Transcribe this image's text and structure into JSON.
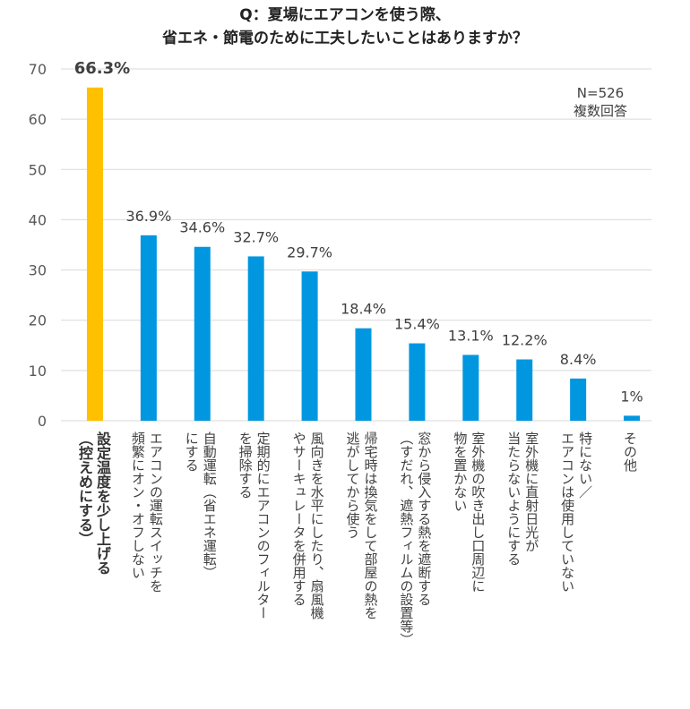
{
  "title": {
    "line1": "Q：夏場にエアコンを使う際、",
    "line2": "省エネ・節電のために工夫したいことはありますか？"
  },
  "note": {
    "n": "N=526",
    "type": "複数回答"
  },
  "colors": {
    "highlight": "#FFC000",
    "bar": "#0097E0",
    "grid": "#D9D9D9",
    "axis_text": "#595959"
  },
  "chart_data": {
    "type": "bar",
    "ylim": [
      0,
      70
    ],
    "yticks": [
      "0",
      "10",
      "20",
      "30",
      "40",
      "50",
      "60",
      "70"
    ],
    "grid": true,
    "categories": [
      [
        "設定温度を少し上げる",
        "（控えめにする）"
      ],
      [
        "エアコンの運転スイッチを",
        "頻繁にオン・オフしない"
      ],
      [
        "自動運転（省エネ運転）",
        "にする"
      ],
      [
        "定期的にエアコンのフィルター",
        "を掃除する"
      ],
      [
        "風向きを水平にしたり、扇風機",
        "やサーキュレータを併用する"
      ],
      [
        "帰宅時は換気をして部屋の熱を",
        "逃がしてから使う"
      ],
      [
        "窓から侵入する熱を遮断する",
        "（すだれ、遮熱フィルムの設置等）"
      ],
      [
        "室外機の吹き出し口周辺に",
        "物を置かない"
      ],
      [
        "室外機に直射日光が",
        "当たらないようにする"
      ],
      [
        "特にない／",
        "エアコンは使用していない"
      ],
      [
        "その他"
      ]
    ],
    "values": [
      66.3,
      36.9,
      34.6,
      32.7,
      29.7,
      18.4,
      15.4,
      13.1,
      12.2,
      8.4,
      1
    ],
    "data_labels": [
      "66.3%",
      "36.9%",
      "34.6%",
      "32.7%",
      "29.7%",
      "18.4%",
      "15.4%",
      "13.1%",
      "12.2%",
      "8.4%",
      "1%"
    ],
    "highlight_index": 0
  }
}
